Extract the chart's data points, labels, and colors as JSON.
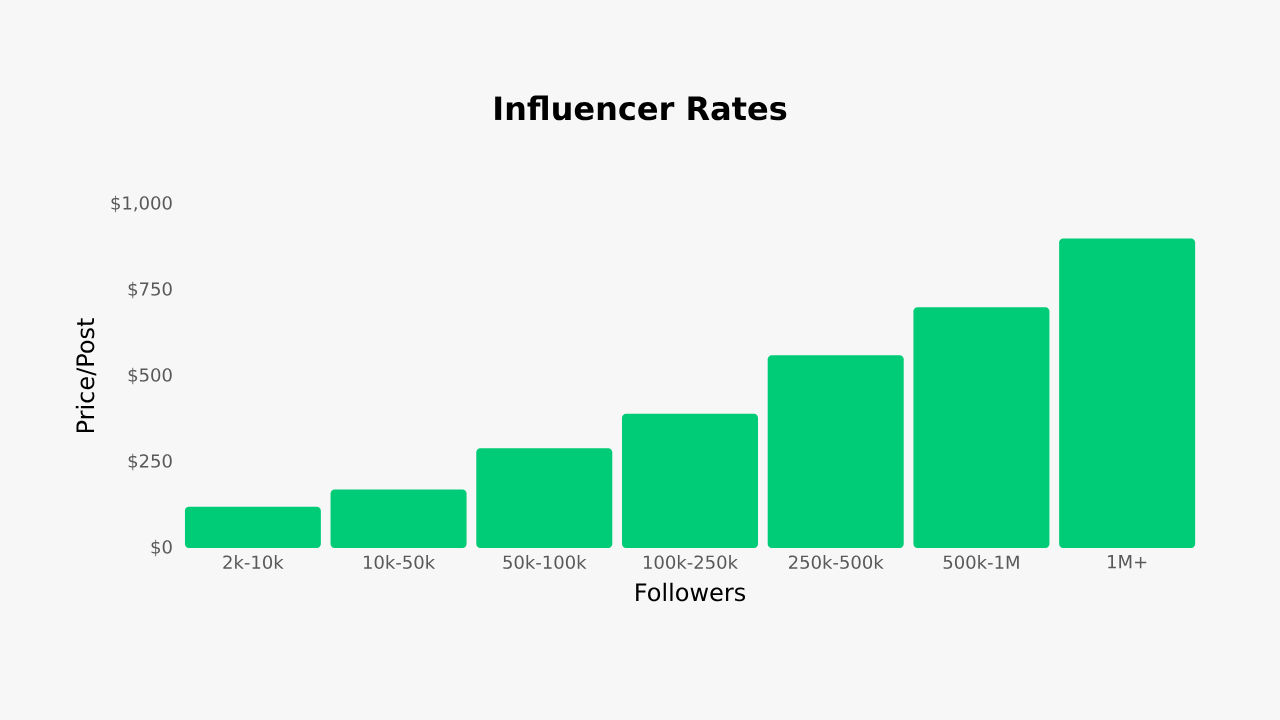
{
  "chart_data": {
    "type": "bar",
    "title": "Influencer Rates",
    "xlabel": "Followers",
    "ylabel": "Price/Post",
    "categories": [
      "2k-10k",
      "10k-50k",
      "50k-100k",
      "100k-250k",
      "250k-500k",
      "500k-1M",
      "1M+"
    ],
    "values": [
      120,
      170,
      290,
      390,
      560,
      700,
      900
    ],
    "color": "#00cc77",
    "ylim": [
      0,
      1000
    ],
    "yticks": [
      {
        "value": 0,
        "label": "$0"
      },
      {
        "value": 250,
        "label": "$250"
      },
      {
        "value": 500,
        "label": "$500"
      },
      {
        "value": 750,
        "label": "$750"
      },
      {
        "value": 1000,
        "label": "$1,000"
      }
    ],
    "grid": false
  }
}
